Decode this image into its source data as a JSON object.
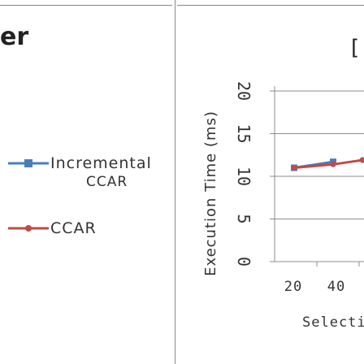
{
  "left_panel": {
    "title_fragment": "er"
  },
  "right_panel": {
    "title_fragment": "["
  },
  "chart_data": {
    "type": "line",
    "ylabel": "Execution Time (ms)",
    "xlabel": "Selectiv",
    "ylim": [
      0,
      20
    ],
    "yticks": [
      "0",
      "5",
      "10",
      "15",
      "20"
    ],
    "xticks": [
      "20",
      "40"
    ],
    "xlim": [
      0,
      50
    ],
    "legend": {
      "placement": "left",
      "entries": [
        "Incremental CCAR",
        "CCAR"
      ]
    },
    "series": [
      {
        "name": "Incremental CCAR",
        "color": "#4a7ebb",
        "x": [
          10,
          30
        ],
        "y": [
          11.0,
          11.7
        ]
      },
      {
        "name": "CCAR",
        "color": "#be4b48",
        "x": [
          10,
          30,
          45
        ],
        "y": [
          11.0,
          11.4,
          11.9
        ]
      }
    ],
    "grid": true
  }
}
